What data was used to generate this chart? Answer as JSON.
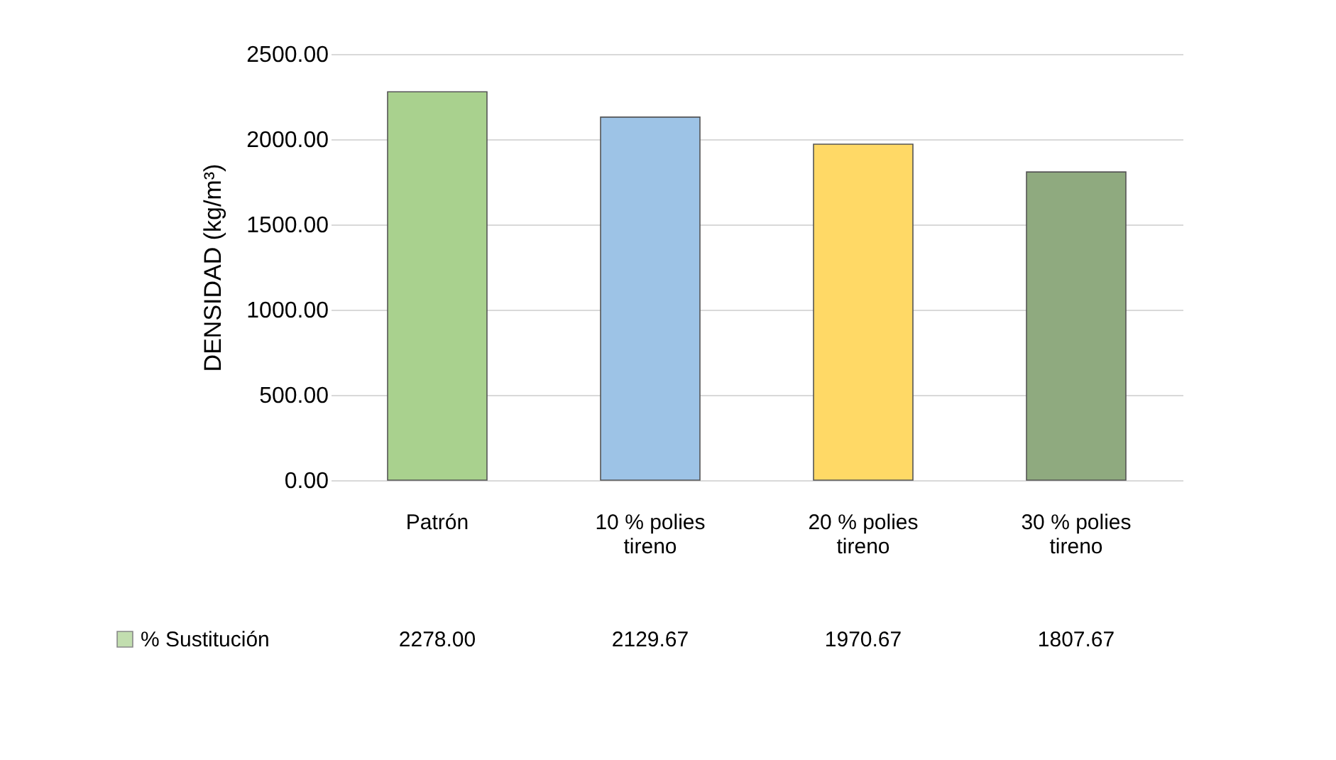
{
  "chart_data": {
    "type": "bar",
    "ylabel": "DENSIDAD (kg/m³)",
    "categories": [
      "Patrón",
      "10 % poliestireno",
      "20 % poliestireno",
      "30 % poliestireno"
    ],
    "series": [
      {
        "name": "% Sustitución",
        "color": "#a9d18e",
        "colors": [
          "#a9d18e",
          "#9dc3e6",
          "#ffd966",
          "#8faa7f"
        ],
        "values": [
          2278.0,
          2129.67,
          1970.67,
          1807.67
        ],
        "value_labels": [
          "2278.00",
          "2129.67",
          "1970.67",
          "1807.67"
        ]
      }
    ],
    "ylim": [
      0,
      2500
    ],
    "yticks": [
      {
        "value": 0,
        "label": "0.00"
      },
      {
        "value": 500,
        "label": "500.00"
      },
      {
        "value": 1000,
        "label": "1000.00"
      },
      {
        "value": 1500,
        "label": "1500.00"
      },
      {
        "value": 2000,
        "label": "2000.00"
      },
      {
        "value": 2500,
        "label": "2500.00"
      }
    ],
    "grid": "y",
    "legend": "bottom left"
  }
}
